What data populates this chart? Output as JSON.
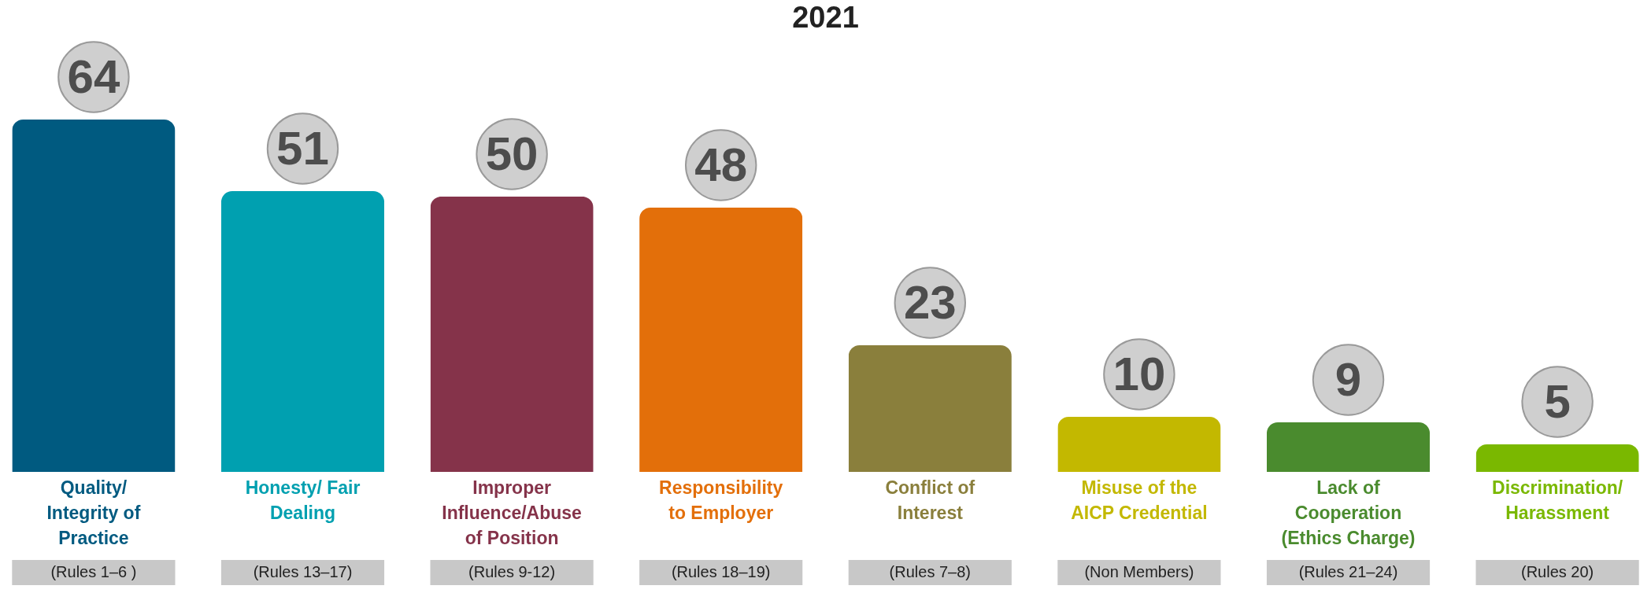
{
  "chart_data": {
    "type": "bar",
    "title": "2021",
    "categories": [
      "Quality/ Integrity of Practice",
      "Honesty/ Fair Dealing",
      "Improper Influence/Abuse of Position",
      "Responsibility to Employer",
      "Conflict of Interest",
      "Misuse of the AICP Credential",
      "Lack of Cooperation (Ethics Charge)",
      "Discrimination/ Harassment"
    ],
    "values": [
      64,
      51,
      50,
      48,
      23,
      10,
      9,
      5
    ],
    "colors": [
      "#005a80",
      "#00a0b0",
      "#85334a",
      "#e36f0a",
      "#8a7f3c",
      "#c3b800",
      "#4a8b2e",
      "#7ab800"
    ],
    "data_labels": true,
    "annotations": [
      "(Rules 1–6 )",
      "(Rules 13–17)",
      "(Rules 9-12)",
      "(Rules 18–19)",
      "(Rules 7–8)",
      "(Non Members)",
      "(Rules 21–24)",
      "(Rules 20)"
    ]
  }
}
